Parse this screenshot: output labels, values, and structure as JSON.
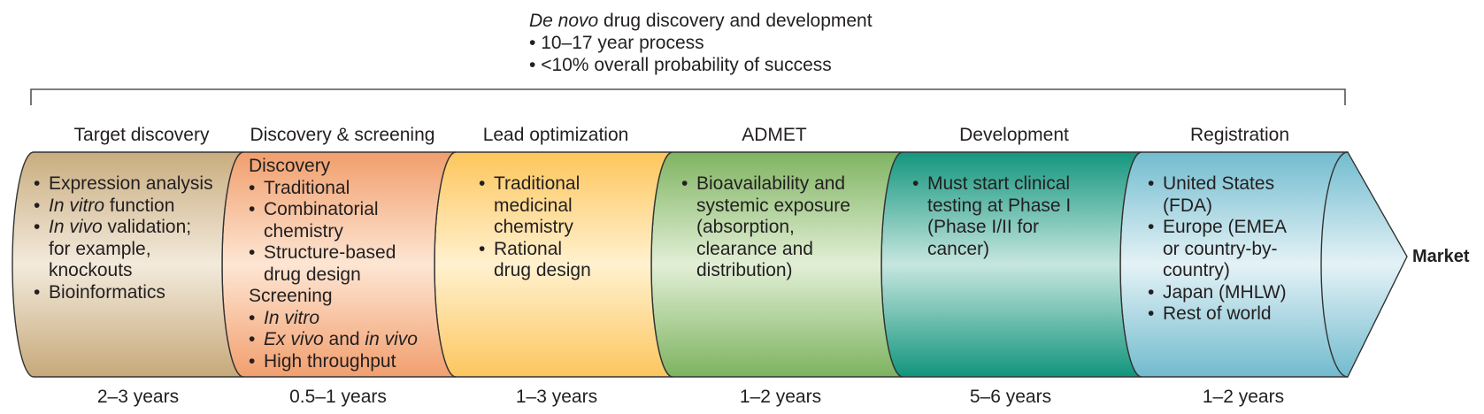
{
  "header": {
    "title_italic": "De novo",
    "title_rest": " drug discovery and development",
    "bullets": [
      "10–17 year process",
      "<10% overall probability of success"
    ]
  },
  "stages": [
    {
      "title": "Target discovery",
      "duration": "2–3 years",
      "color": "#d8c29e"
    },
    {
      "title": "Discovery & screening",
      "duration": "0.5–1 years",
      "color": "#f4b58e"
    },
    {
      "title": "Lead optimization",
      "duration": "1–3 years",
      "color": "#fdd385"
    },
    {
      "title": "ADMET",
      "duration": "1–2 years",
      "color": "#99c47e"
    },
    {
      "title": "Development",
      "duration": "5–6 years",
      "color": "#2ea792"
    },
    {
      "title": "Registration",
      "duration": "1–2 years",
      "color": "#8ecbd9"
    }
  ],
  "target_discovery": {
    "expression": "Expression analysis",
    "in_vitro_i": "In vitro",
    "in_vitro_rest": " function",
    "in_vivo_i": "In vivo",
    "in_vivo_rest": " validation;",
    "in_vivo_l2": "for example,",
    "in_vivo_l3": "knockouts",
    "bioinformatics": "Bioinformatics"
  },
  "discovery_screening": {
    "discovery_heading": "Discovery",
    "traditional": "Traditional",
    "combi_l1": "Combinatorial",
    "combi_l2": "chemistry",
    "struct_l1": "Structure-based",
    "struct_l2": "drug design",
    "screening_heading": "Screening",
    "in_vitro": "In vitro",
    "ex_vivo": "Ex vivo",
    "and": " and ",
    "in_vivo": "in vivo",
    "high_throughput": "High throughput"
  },
  "lead_optimization": {
    "trad_l1": "Traditional",
    "trad_l2": "medicinal",
    "trad_l3": "chemistry",
    "rational_l1": "Rational",
    "rational_l2": "drug design"
  },
  "admet": {
    "l1": "Bioavailability and",
    "l2": "systemic exposure",
    "l3": "(absorption,",
    "l4": "clearance and",
    "l5": "distribution)"
  },
  "development": {
    "l1": "Must start clinical",
    "l2": "testing at Phase I",
    "l3": "(Phase I/II for",
    "l4": "cancer)"
  },
  "registration": {
    "us_l1": "United States",
    "us_l2": "(FDA)",
    "eu_l1": "Europe (EMEA",
    "eu_l2": "or country-by-",
    "eu_l3": "country)",
    "japan": "Japan (MHLW)",
    "rest": "Rest of world"
  },
  "market": "Market"
}
